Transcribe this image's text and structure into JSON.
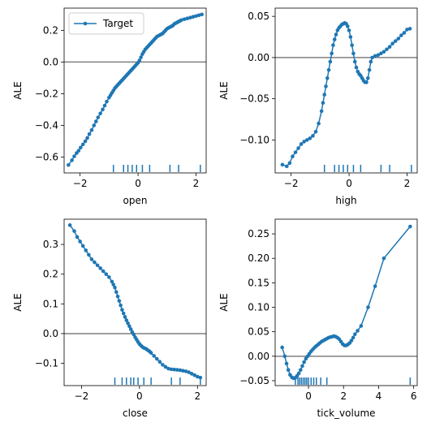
{
  "chart_data": [
    {
      "type": "line",
      "xlabel": "open",
      "ylabel": "ALE",
      "xlim": [
        -2.55,
        2.35
      ],
      "ylim": [
        -0.7,
        0.34
      ],
      "xticks": [
        -2,
        0,
        2
      ],
      "yticks": [
        -0.6,
        -0.4,
        -0.2,
        0.0,
        0.2
      ],
      "ytick_labels": [
        "−0.6",
        "−0.4",
        "−0.2",
        "0.0",
        "0.2"
      ],
      "legend": {
        "label": "Target",
        "loc": "upper left"
      },
      "rug": [
        -0.85,
        -0.5,
        -0.35,
        -0.2,
        -0.05,
        0.15,
        0.4,
        1.1,
        1.4,
        2.15
      ],
      "series": [
        {
          "name": "Target",
          "color": "#1f77b4",
          "x": [
            -2.4,
            -2.28,
            -2.2,
            -2.12,
            -2.05,
            -1.98,
            -1.9,
            -1.82,
            -1.75,
            -1.68,
            -1.6,
            -1.52,
            -1.45,
            -1.38,
            -1.3,
            -1.22,
            -1.15,
            -1.08,
            -1.0,
            -0.95,
            -0.9,
            -0.85,
            -0.8,
            -0.75,
            -0.7,
            -0.65,
            -0.6,
            -0.55,
            -0.5,
            -0.45,
            -0.4,
            -0.35,
            -0.3,
            -0.25,
            -0.2,
            -0.15,
            -0.1,
            -0.05,
            0.0,
            0.05,
            0.1,
            0.15,
            0.2,
            0.25,
            0.3,
            0.35,
            0.4,
            0.45,
            0.5,
            0.55,
            0.6,
            0.65,
            0.7,
            0.75,
            0.8,
            0.85,
            0.9,
            0.95,
            1.0,
            1.05,
            1.1,
            1.15,
            1.2,
            1.25,
            1.3,
            1.35,
            1.4,
            1.45,
            1.5,
            1.6,
            1.7,
            1.8,
            1.9,
            2.0,
            2.1,
            2.2
          ],
          "y": [
            -0.65,
            -0.62,
            -0.595,
            -0.575,
            -0.56,
            -0.54,
            -0.52,
            -0.5,
            -0.48,
            -0.455,
            -0.43,
            -0.4,
            -0.375,
            -0.35,
            -0.325,
            -0.3,
            -0.275,
            -0.25,
            -0.225,
            -0.21,
            -0.195,
            -0.18,
            -0.165,
            -0.155,
            -0.145,
            -0.135,
            -0.125,
            -0.115,
            -0.105,
            -0.095,
            -0.085,
            -0.075,
            -0.065,
            -0.055,
            -0.045,
            -0.035,
            -0.025,
            -0.015,
            -0.005,
            0.01,
            0.03,
            0.05,
            0.065,
            0.08,
            0.09,
            0.1,
            0.11,
            0.12,
            0.13,
            0.14,
            0.15,
            0.16,
            0.165,
            0.17,
            0.175,
            0.18,
            0.19,
            0.2,
            0.21,
            0.215,
            0.22,
            0.225,
            0.23,
            0.24,
            0.245,
            0.25,
            0.255,
            0.26,
            0.265,
            0.27,
            0.275,
            0.28,
            0.285,
            0.29,
            0.295,
            0.3
          ]
        }
      ]
    },
    {
      "type": "line",
      "xlabel": "high",
      "ylabel": "ALE",
      "xlim": [
        -2.55,
        2.35
      ],
      "ylim": [
        -0.14,
        0.06
      ],
      "xticks": [
        -2,
        0,
        2
      ],
      "yticks": [
        -0.1,
        -0.05,
        0.0,
        0.05
      ],
      "ytick_labels": [
        "−0.10",
        "−0.05",
        "0.00",
        "0.05"
      ],
      "rug": [
        -0.85,
        -0.5,
        -0.35,
        -0.2,
        -0.05,
        0.15,
        0.4,
        1.1,
        1.4,
        2.15
      ],
      "series": [
        {
          "color": "#1f77b4",
          "x": [
            -2.3,
            -2.15,
            -2.05,
            -1.95,
            -1.85,
            -1.75,
            -1.65,
            -1.55,
            -1.45,
            -1.35,
            -1.25,
            -1.15,
            -1.05,
            -0.95,
            -0.9,
            -0.85,
            -0.8,
            -0.75,
            -0.7,
            -0.65,
            -0.6,
            -0.55,
            -0.5,
            -0.45,
            -0.4,
            -0.35,
            -0.3,
            -0.25,
            -0.2,
            -0.15,
            -0.1,
            -0.05,
            0.0,
            0.05,
            0.1,
            0.15,
            0.2,
            0.25,
            0.3,
            0.35,
            0.4,
            0.45,
            0.5,
            0.55,
            0.6,
            0.65,
            0.7,
            0.75,
            0.8,
            0.9,
            1.0,
            1.1,
            1.2,
            1.3,
            1.4,
            1.5,
            1.6,
            1.7,
            1.8,
            1.9,
            2.0,
            2.1
          ],
          "y": [
            -0.13,
            -0.132,
            -0.128,
            -0.12,
            -0.115,
            -0.11,
            -0.105,
            -0.102,
            -0.1,
            -0.098,
            -0.095,
            -0.09,
            -0.08,
            -0.065,
            -0.055,
            -0.045,
            -0.035,
            -0.025,
            -0.015,
            -0.005,
            0.005,
            0.015,
            0.022,
            0.028,
            0.033,
            0.036,
            0.038,
            0.04,
            0.041,
            0.042,
            0.041,
            0.038,
            0.033,
            0.025,
            0.015,
            0.005,
            -0.005,
            -0.012,
            -0.017,
            -0.02,
            -0.022,
            -0.025,
            -0.028,
            -0.03,
            -0.03,
            -0.025,
            -0.015,
            -0.005,
            0.0,
            0.002,
            0.003,
            0.005,
            0.007,
            0.01,
            0.013,
            0.017,
            0.02,
            0.023,
            0.027,
            0.03,
            0.034,
            0.035
          ]
        }
      ]
    },
    {
      "type": "line",
      "xlabel": "close",
      "ylabel": "ALE",
      "xlim": [
        -2.6,
        2.3
      ],
      "ylim": [
        -0.175,
        0.385
      ],
      "xticks": [
        -2,
        0,
        2
      ],
      "yticks": [
        -0.1,
        0.0,
        0.1,
        0.2,
        0.3
      ],
      "ytick_labels": [
        "−0.1",
        "0.0",
        "0.1",
        "0.2",
        "0.3"
      ],
      "rug": [
        -0.85,
        -0.6,
        -0.45,
        -0.3,
        -0.2,
        -0.05,
        0.15,
        0.4,
        1.1,
        1.4,
        2.1
      ],
      "series": [
        {
          "color": "#1f77b4",
          "x": [
            -2.4,
            -2.25,
            -2.15,
            -2.05,
            -1.95,
            -1.85,
            -1.75,
            -1.65,
            -1.55,
            -1.45,
            -1.35,
            -1.25,
            -1.15,
            -1.05,
            -0.95,
            -0.9,
            -0.85,
            -0.8,
            -0.75,
            -0.7,
            -0.65,
            -0.6,
            -0.55,
            -0.5,
            -0.45,
            -0.4,
            -0.35,
            -0.3,
            -0.25,
            -0.2,
            -0.15,
            -0.1,
            -0.05,
            0.0,
            0.05,
            0.1,
            0.15,
            0.2,
            0.25,
            0.3,
            0.35,
            0.4,
            0.5,
            0.6,
            0.7,
            0.8,
            0.9,
            1.0,
            1.1,
            1.2,
            1.3,
            1.4,
            1.5,
            1.6,
            1.7,
            1.8,
            1.9,
            2.0,
            2.1
          ],
          "y": [
            0.365,
            0.345,
            0.325,
            0.31,
            0.295,
            0.28,
            0.265,
            0.25,
            0.24,
            0.23,
            0.22,
            0.21,
            0.2,
            0.19,
            0.175,
            0.165,
            0.155,
            0.14,
            0.125,
            0.11,
            0.095,
            0.08,
            0.068,
            0.056,
            0.045,
            0.035,
            0.025,
            0.015,
            0.005,
            -0.003,
            -0.012,
            -0.02,
            -0.028,
            -0.035,
            -0.04,
            -0.045,
            -0.048,
            -0.05,
            -0.053,
            -0.057,
            -0.06,
            -0.065,
            -0.075,
            -0.085,
            -0.095,
            -0.105,
            -0.112,
            -0.118,
            -0.12,
            -0.121,
            -0.122,
            -0.123,
            -0.125,
            -0.127,
            -0.13,
            -0.135,
            -0.14,
            -0.145,
            -0.148
          ]
        }
      ]
    },
    {
      "type": "line",
      "xlabel": "tick_volume",
      "ylabel": "ALE",
      "xlim": [
        -1.9,
        6.2
      ],
      "ylim": [
        -0.06,
        0.28
      ],
      "xticks": [
        0,
        2,
        4,
        6
      ],
      "yticks": [
        -0.05,
        0.0,
        0.05,
        0.1,
        0.15,
        0.2,
        0.25
      ],
      "ytick_labels": [
        "−0.05",
        "0.00",
        "0.05",
        "0.10",
        "0.15",
        "0.20",
        "0.25"
      ],
      "rug": [
        -0.75,
        -0.6,
        -0.5,
        -0.4,
        -0.3,
        -0.2,
        -0.1,
        0.0,
        0.15,
        0.3,
        0.45,
        0.7,
        1.05,
        5.8
      ],
      "series": [
        {
          "color": "#1f77b4",
          "x": [
            -1.5,
            -1.35,
            -1.25,
            -1.15,
            -1.05,
            -0.95,
            -0.85,
            -0.75,
            -0.65,
            -0.55,
            -0.45,
            -0.35,
            -0.25,
            -0.15,
            -0.05,
            0.05,
            0.15,
            0.25,
            0.35,
            0.45,
            0.55,
            0.65,
            0.75,
            0.85,
            0.95,
            1.05,
            1.15,
            1.25,
            1.35,
            1.45,
            1.55,
            1.65,
            1.75,
            1.85,
            1.95,
            2.05,
            2.15,
            2.25,
            2.35,
            2.45,
            2.55,
            2.65,
            2.8,
            3.0,
            3.4,
            3.8,
            4.3,
            5.8
          ],
          "y": [
            0.018,
            0.0,
            -0.015,
            -0.028,
            -0.038,
            -0.043,
            -0.045,
            -0.044,
            -0.04,
            -0.035,
            -0.028,
            -0.02,
            -0.012,
            -0.005,
            0.0,
            0.005,
            0.01,
            0.014,
            0.018,
            0.021,
            0.024,
            0.027,
            0.03,
            0.032,
            0.034,
            0.036,
            0.038,
            0.039,
            0.04,
            0.041,
            0.04,
            0.038,
            0.035,
            0.03,
            0.025,
            0.022,
            0.022,
            0.024,
            0.027,
            0.032,
            0.038,
            0.045,
            0.052,
            0.062,
            0.1,
            0.143,
            0.2,
            0.265
          ]
        }
      ]
    }
  ],
  "colors": {
    "series": "#1f77b4",
    "zero_line": "#808080",
    "axes": "#000000"
  }
}
